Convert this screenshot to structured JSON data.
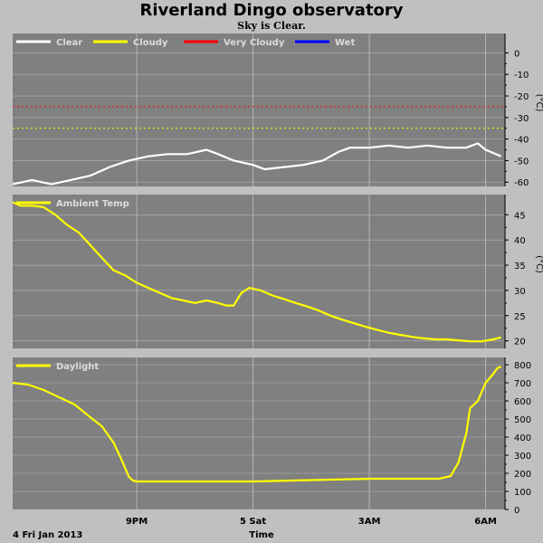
{
  "page": {
    "title": "Riverland Dingo observatory",
    "subtitle": "Sky is Clear.",
    "start_label": "4 Fri Jan 2013",
    "xlabel": "Time"
  },
  "colors": {
    "background": "#c0c0c0",
    "panel": "#808080",
    "grid": "#b4b4b4",
    "clear": "#ffffff",
    "cloudy": "#ffff00",
    "very_cloudy": "#ff0000",
    "wet": "#0000ff"
  },
  "chart_data": [
    {
      "type": "line",
      "name": "sky",
      "xlim": [
        17.8,
        30.5
      ],
      "ylim": [
        -62,
        9
      ],
      "y_ticks": [
        0,
        -10,
        -20,
        -30,
        -40,
        -50,
        -60
      ],
      "ylabel": "(°C)",
      "x_ticks": [
        21,
        24,
        27,
        30
      ],
      "legend": [
        "Clear",
        "Cloudy",
        "Very Cloudy",
        "Wet"
      ],
      "thresholds": [
        {
          "name": "Very Cloudy",
          "value": -25,
          "color": "#ff0000"
        },
        {
          "name": "Cloudy",
          "value": -35,
          "color": "#ffff00"
        }
      ],
      "series": [
        {
          "name": "Clear",
          "color": "#ffffff",
          "x": [
            17.8,
            18.3,
            18.8,
            19.3,
            19.8,
            20.3,
            20.8,
            21.3,
            21.8,
            22.3,
            22.8,
            23.1,
            23.5,
            24.0,
            24.3,
            24.8,
            25.3,
            25.8,
            26.2,
            26.5,
            27.0,
            27.5,
            28.0,
            28.5,
            29.0,
            29.5,
            29.8,
            30.0,
            30.4
          ],
          "y": [
            -61,
            -59,
            -61,
            -59,
            -57,
            -53,
            -50,
            -48,
            -47,
            -47,
            -45,
            -47,
            -50,
            -52,
            -54,
            -53,
            -52,
            -50,
            -46,
            -44,
            -44,
            -43,
            -44,
            -43,
            -44,
            -44,
            -42,
            -45,
            -48
          ]
        }
      ]
    },
    {
      "type": "line",
      "name": "ambient",
      "xlim": [
        17.8,
        30.5
      ],
      "ylim": [
        18.5,
        49
      ],
      "y_ticks": [
        20,
        25,
        30,
        35,
        40,
        45
      ],
      "ylabel": "(°C)",
      "x_ticks": [
        21,
        24,
        27,
        30
      ],
      "legend": [
        "Ambient Temp"
      ],
      "series": [
        {
          "name": "Ambient Temp",
          "color": "#ffff00",
          "x": [
            17.8,
            18.0,
            18.3,
            18.6,
            18.9,
            19.2,
            19.5,
            19.8,
            20.1,
            20.4,
            20.7,
            21.0,
            21.3,
            21.6,
            21.9,
            22.2,
            22.5,
            22.8,
            23.1,
            23.3,
            23.5,
            23.7,
            23.9,
            24.2,
            24.5,
            24.8,
            25.1,
            25.4,
            25.7,
            26.0,
            26.3,
            26.6,
            26.9,
            27.2,
            27.5,
            27.8,
            28.1,
            28.4,
            28.7,
            29.0,
            29.3,
            29.6,
            29.9,
            30.2,
            30.4
          ],
          "y": [
            47.5,
            46.8,
            46.8,
            46.5,
            45.0,
            43.0,
            41.5,
            39.0,
            36.5,
            34.0,
            33.0,
            31.5,
            30.5,
            29.5,
            28.5,
            28.0,
            27.5,
            28.0,
            27.5,
            27.0,
            27.0,
            29.5,
            30.5,
            30.0,
            29.0,
            28.3,
            27.5,
            26.8,
            26.0,
            25.0,
            24.2,
            23.5,
            22.8,
            22.2,
            21.6,
            21.2,
            20.8,
            20.5,
            20.3,
            20.3,
            20.1,
            19.9,
            19.9,
            20.3,
            20.7
          ]
        }
      ]
    },
    {
      "type": "line",
      "name": "daylight",
      "xlim": [
        17.8,
        30.5
      ],
      "ylim": [
        0,
        840
      ],
      "y_ticks": [
        0,
        100,
        200,
        300,
        400,
        500,
        600,
        700,
        800
      ],
      "x_ticks": [
        21,
        24,
        27,
        30
      ],
      "x_tick_labels": [
        "9PM",
        "5 Sat",
        "3AM",
        "6AM"
      ],
      "legend": [
        "Daylight"
      ],
      "series": [
        {
          "name": "Daylight",
          "color": "#ffff00",
          "x": [
            17.8,
            18.2,
            18.6,
            19.0,
            19.4,
            19.8,
            20.1,
            20.4,
            20.6,
            20.8,
            20.9,
            21.0,
            21.3,
            22.0,
            23.0,
            24.0,
            25.0,
            26.0,
            27.0,
            28.0,
            28.8,
            29.1,
            29.3,
            29.5,
            29.6,
            29.8,
            30.0,
            30.2,
            30.3,
            30.4
          ],
          "y": [
            700,
            690,
            660,
            620,
            580,
            510,
            460,
            370,
            280,
            180,
            160,
            155,
            155,
            155,
            155,
            155,
            160,
            165,
            170,
            170,
            170,
            185,
            260,
            420,
            560,
            600,
            700,
            750,
            780,
            790
          ]
        }
      ]
    }
  ]
}
